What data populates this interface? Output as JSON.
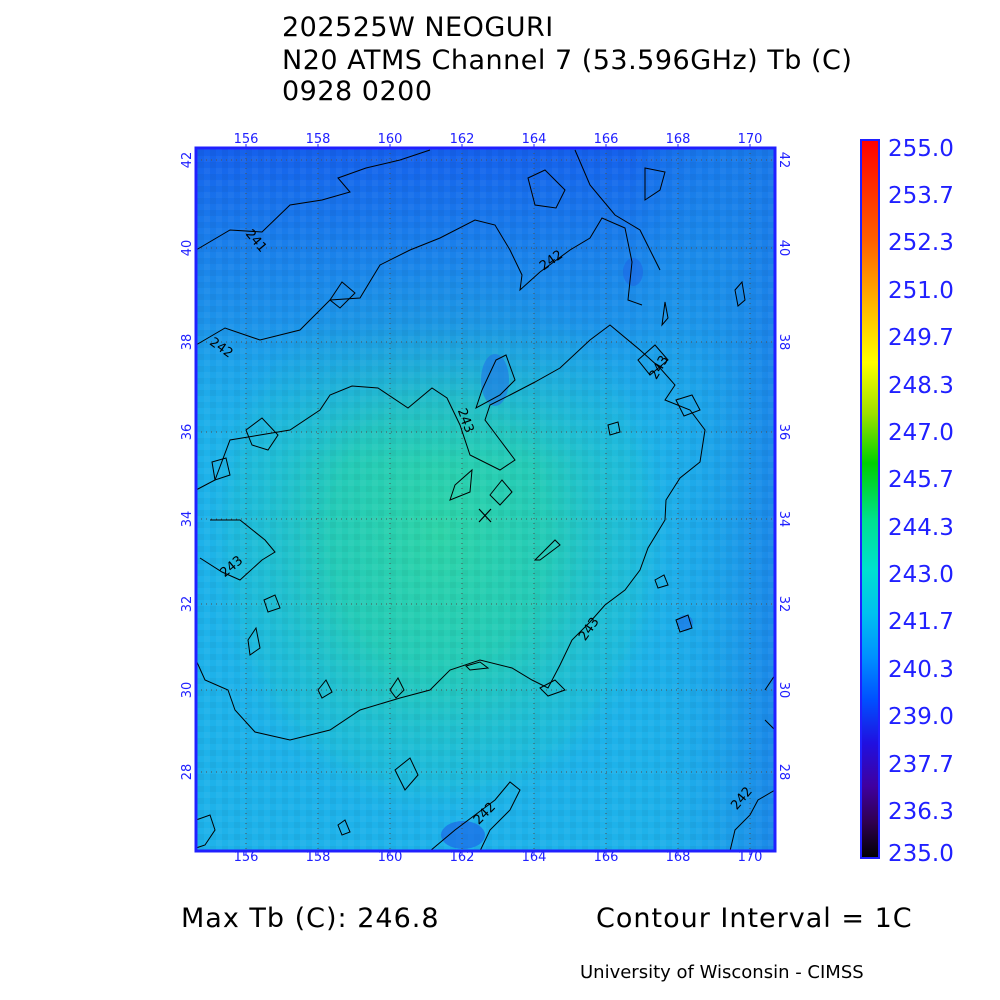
{
  "header": {
    "line1": "202525W NEOGURI",
    "line2": "N20 ATMS Channel 7 (53.596GHz) Tb (C)",
    "line3": "0928 0200"
  },
  "map": {
    "lon_labels": [
      "156",
      "158",
      "160",
      "162",
      "164",
      "166",
      "168",
      "170"
    ],
    "lat_labels": [
      "28",
      "30",
      "32",
      "34",
      "36",
      "38",
      "40",
      "42"
    ],
    "lon_range": [
      154.8,
      170.8
    ],
    "lat_range": [
      26.4,
      42.2
    ],
    "storm_center_marker": "x-marker",
    "contour_labels": [
      "241",
      "242",
      "242",
      "243",
      "243",
      "243",
      "243",
      "242",
      "242"
    ]
  },
  "colorbar": {
    "ticks": [
      "255.0",
      "253.7",
      "252.3",
      "251.0",
      "249.7",
      "248.3",
      "247.0",
      "245.7",
      "244.3",
      "243.0",
      "241.7",
      "240.3",
      "239.0",
      "237.7",
      "236.3",
      "235.0"
    ],
    "colors": [
      "#ff0000",
      "#ff4000",
      "#ff8000",
      "#ffc000",
      "#ffff00",
      "#a0e000",
      "#00d000",
      "#00e090",
      "#00e0d0",
      "#00c8f0",
      "#0090ff",
      "#0050ff",
      "#2010e0",
      "#4000a0",
      "#300050",
      "#000000"
    ]
  },
  "footer": {
    "max_tb": "Max Tb (C): 246.8",
    "contour_interval": "Contour Interval = 1C",
    "credit": "University of Wisconsin - CIMSS"
  },
  "style": {
    "axis_color": "#2020ff",
    "field_base_color": "#1eb2ea"
  }
}
